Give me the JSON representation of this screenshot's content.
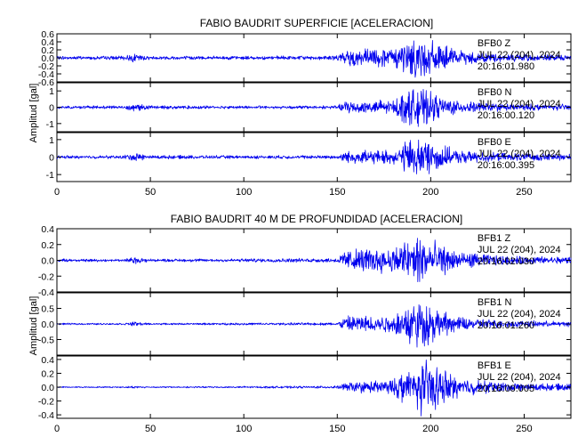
{
  "chart_data": [
    {
      "type": "line",
      "title": "FABIO BAUDRIT SUPERFICIE [ACELERACION]",
      "ylabel": "Amplitud [gal]",
      "xlim": [
        0,
        275
      ],
      "xticks": [
        "0",
        "50",
        "100",
        "150",
        "200",
        "250"
      ],
      "line_color": "#0000ee",
      "panels": [
        {
          "channel": "BFB0 Z",
          "date": "JUL 22 (204), 2024",
          "time": "20:16:01.980",
          "ylim": [
            -0.6,
            0.6
          ],
          "yticks": [
            "0.6",
            "0.4",
            "0.2",
            "0.0",
            "-0.2",
            "-0.4",
            "-0.6"
          ],
          "ytick_values": [
            0.6,
            0.4,
            0.2,
            0.0,
            -0.2,
            -0.4,
            -0.6
          ],
          "envelope": [
            [
              0,
              0.05
            ],
            [
              35,
              0.05
            ],
            [
              42,
              0.12
            ],
            [
              48,
              0.05
            ],
            [
              100,
              0.05
            ],
            [
              150,
              0.06
            ],
            [
              155,
              0.25
            ],
            [
              165,
              0.26
            ],
            [
              180,
              0.26
            ],
            [
              187,
              0.52
            ],
            [
              195,
              0.6
            ],
            [
              203,
              0.42
            ],
            [
              215,
              0.2
            ],
            [
              240,
              0.11
            ],
            [
              275,
              0.08
            ]
          ]
        },
        {
          "channel": "BFB0 N",
          "date": "JUL 22 (204), 2024",
          "time": "20:16:00.120",
          "ylim": [
            -1.5,
            1.5
          ],
          "yticks": [
            "1",
            "0",
            "-1"
          ],
          "ytick_values": [
            1,
            0,
            -1
          ],
          "envelope": [
            [
              0,
              0.1
            ],
            [
              35,
              0.1
            ],
            [
              42,
              0.3
            ],
            [
              50,
              0.12
            ],
            [
              100,
              0.1
            ],
            [
              150,
              0.12
            ],
            [
              155,
              0.45
            ],
            [
              180,
              0.5
            ],
            [
              187,
              1.15
            ],
            [
              193,
              1.4
            ],
            [
              203,
              0.85
            ],
            [
              215,
              0.4
            ],
            [
              240,
              0.25
            ],
            [
              275,
              0.2
            ]
          ]
        },
        {
          "channel": "BFB0 E",
          "date": "JUL 22 (204), 2024",
          "time": "20:16:00.395",
          "ylim": [
            -1.4,
            1.4
          ],
          "yticks": [
            "1",
            "0",
            "-1"
          ],
          "ytick_values": [
            1,
            0,
            -1
          ],
          "envelope": [
            [
              0,
              0.1
            ],
            [
              35,
              0.1
            ],
            [
              42,
              0.28
            ],
            [
              50,
              0.12
            ],
            [
              100,
              0.1
            ],
            [
              150,
              0.12
            ],
            [
              155,
              0.4
            ],
            [
              180,
              0.45
            ],
            [
              187,
              1.1
            ],
            [
              193,
              1.3
            ],
            [
              203,
              0.9
            ],
            [
              215,
              0.4
            ],
            [
              240,
              0.25
            ],
            [
              275,
              0.2
            ]
          ]
        }
      ]
    },
    {
      "type": "line",
      "title": "FABIO BAUDRIT 40 M DE PROFUNDIDAD [ACELERACION]",
      "ylabel": "Amplitud [gal]",
      "xlim": [
        0,
        275
      ],
      "xticks": [
        "0",
        "50",
        "100",
        "150",
        "200",
        "250"
      ],
      "line_color": "#0000ee",
      "panels": [
        {
          "channel": "BFB1 Z",
          "date": "JUL 22 (204), 2024",
          "time": "20:16:02.030",
          "ylim": [
            -0.4,
            0.4
          ],
          "yticks": [
            "0.4",
            "0.2",
            "0.0",
            "-0.2",
            "-0.4"
          ],
          "ytick_values": [
            0.4,
            0.2,
            0.0,
            -0.2,
            -0.4
          ],
          "envelope": [
            [
              0,
              0.02
            ],
            [
              35,
              0.02
            ],
            [
              42,
              0.05
            ],
            [
              50,
              0.02
            ],
            [
              150,
              0.03
            ],
            [
              155,
              0.16
            ],
            [
              180,
              0.18
            ],
            [
              187,
              0.32
            ],
            [
              195,
              0.38
            ],
            [
              203,
              0.25
            ],
            [
              215,
              0.12
            ],
            [
              240,
              0.06
            ],
            [
              275,
              0.05
            ]
          ]
        },
        {
          "channel": "BFB1 N",
          "date": "JUL 22 (204), 2024",
          "time": "20:16:01.260",
          "ylim": [
            -1.0,
            1.0
          ],
          "yticks": [
            "0.5",
            "0.0",
            "-0.5"
          ],
          "ytick_values": [
            0.5,
            0.0,
            -0.5
          ],
          "envelope": [
            [
              0,
              0.03
            ],
            [
              35,
              0.03
            ],
            [
              42,
              0.08
            ],
            [
              50,
              0.03
            ],
            [
              150,
              0.05
            ],
            [
              155,
              0.3
            ],
            [
              180,
              0.32
            ],
            [
              187,
              0.75
            ],
            [
              195,
              0.9
            ],
            [
              203,
              0.55
            ],
            [
              215,
              0.25
            ],
            [
              240,
              0.12
            ],
            [
              275,
              0.1
            ]
          ]
        },
        {
          "channel": "BFB1 E",
          "date": "JUL 22 (204), 2024",
          "time": "20:16:00.005",
          "ylim": [
            -0.45,
            0.45
          ],
          "yticks": [
            "0.4",
            "0.2",
            "0.0",
            "-0.2",
            "-0.4"
          ],
          "ytick_values": [
            0.4,
            0.2,
            0.0,
            -0.2,
            -0.4
          ],
          "envelope": [
            [
              0,
              0.01
            ],
            [
              35,
              0.01
            ],
            [
              42,
              0.02
            ],
            [
              50,
              0.01
            ],
            [
              150,
              0.02
            ],
            [
              155,
              0.08
            ],
            [
              180,
              0.12
            ],
            [
              186,
              0.3
            ],
            [
              195,
              0.45
            ],
            [
              203,
              0.35
            ],
            [
              215,
              0.15
            ],
            [
              240,
              0.07
            ],
            [
              275,
              0.05
            ]
          ]
        }
      ]
    }
  ]
}
